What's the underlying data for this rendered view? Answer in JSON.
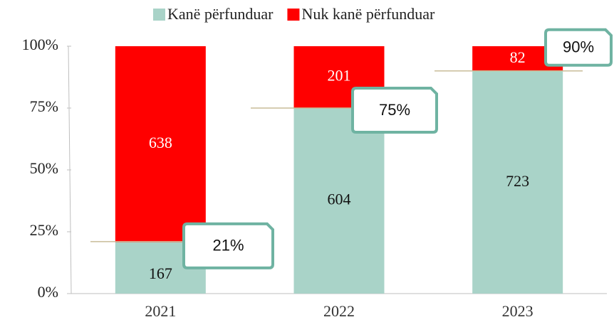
{
  "chart_data": {
    "type": "bar",
    "stacking": "percent",
    "categories": [
      "2021",
      "2022",
      "2023"
    ],
    "series": [
      {
        "name": "Kanë përfunduar",
        "color": "#a9d3c8",
        "values": [
          167,
          604,
          723
        ]
      },
      {
        "name": "Nuk kanë përfunduar",
        "color": "#ff0000",
        "values": [
          638,
          201,
          82
        ]
      }
    ],
    "ylim": [
      0,
      100
    ],
    "yticks": [
      {
        "value": 0,
        "label": "0%"
      },
      {
        "value": 25,
        "label": "25%"
      },
      {
        "value": 50,
        "label": "50%"
      },
      {
        "value": 75,
        "label": "75%"
      },
      {
        "value": 100,
        "label": "100%"
      }
    ],
    "annotations": [
      {
        "label": "21%",
        "value": 21
      },
      {
        "label": "75%",
        "value": 75
      },
      {
        "label": "90%",
        "value": 90
      }
    ],
    "legend": "top"
  }
}
